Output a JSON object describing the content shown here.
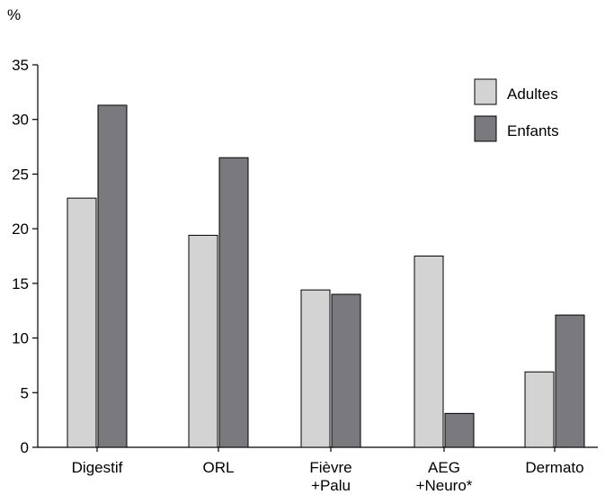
{
  "chart_data": {
    "type": "bar",
    "title": "",
    "ylabel": "%",
    "xlabel": "",
    "ylim": [
      0,
      35
    ],
    "yticks": [
      0,
      5,
      10,
      15,
      20,
      25,
      30,
      35
    ],
    "grid": false,
    "legend_position": "top-right",
    "categories": [
      [
        "Digestif"
      ],
      [
        "ORL"
      ],
      [
        "Fièvre",
        "+Palu"
      ],
      [
        "AEG",
        "+Neuro*"
      ],
      [
        "Dermato"
      ]
    ],
    "series": [
      {
        "name": "Adultes",
        "color": "#d3d3d3",
        "values": [
          22.8,
          19.4,
          14.4,
          17.5,
          6.9
        ]
      },
      {
        "name": "Enfants",
        "color": "#7a7a7e",
        "values": [
          31.3,
          26.5,
          14.0,
          3.1,
          12.1
        ]
      }
    ]
  }
}
